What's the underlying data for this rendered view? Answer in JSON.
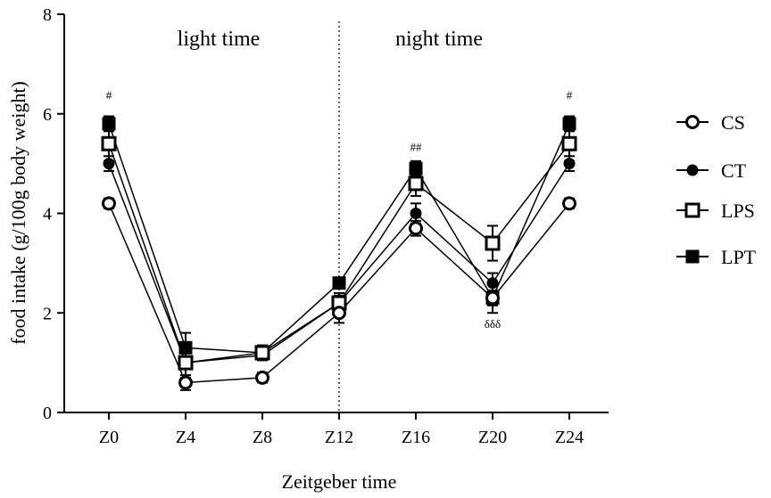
{
  "chart_data": {
    "type": "line",
    "xlabel": "Zeitgeber time",
    "ylabel": "food intake (g/100g body weight)",
    "categories": [
      "Z0",
      "Z4",
      "Z8",
      "Z12",
      "Z16",
      "Z20",
      "Z24"
    ],
    "ylim": [
      0,
      8
    ],
    "yticks": [
      "0",
      "2",
      "4",
      "6",
      "8"
    ],
    "grid": false,
    "legend": "right",
    "series": [
      {
        "name": "CS",
        "marker": "open-circle",
        "values": [
          4.2,
          0.6,
          0.7,
          2.0,
          3.7,
          2.3,
          4.2
        ],
        "errors": [
          0.1,
          0.15,
          0.1,
          0.2,
          0.15,
          0.15,
          0.1
        ]
      },
      {
        "name": "CT",
        "marker": "filled-circle",
        "values": [
          5.0,
          1.0,
          1.15,
          2.2,
          4.0,
          2.6,
          5.0
        ],
        "errors": [
          0.15,
          0.1,
          0.1,
          0.15,
          0.2,
          0.2,
          0.15
        ]
      },
      {
        "name": "LPS",
        "marker": "open-square",
        "values": [
          5.4,
          1.0,
          1.2,
          2.2,
          4.6,
          3.4,
          5.4
        ],
        "errors": [
          0.35,
          0.3,
          0.15,
          0.2,
          0.25,
          0.35,
          0.35
        ]
      },
      {
        "name": "LPT",
        "marker": "filled-square",
        "values": [
          5.8,
          1.3,
          1.2,
          2.6,
          4.9,
          2.3,
          5.8
        ],
        "errors": [
          0.15,
          0.3,
          0.1,
          0.1,
          0.15,
          0.3,
          0.15
        ]
      }
    ],
    "regions": [
      {
        "label": "light time"
      },
      {
        "label": "night time"
      }
    ],
    "divider_at": "Z12",
    "annotations": [
      {
        "category": "Z0",
        "text": "#",
        "y": 6.3
      },
      {
        "category": "Z16",
        "text": "##",
        "y": 5.25
      },
      {
        "category": "Z20",
        "text": "δδδ",
        "y": 1.7
      },
      {
        "category": "Z24",
        "text": "#",
        "y": 6.3
      }
    ]
  }
}
